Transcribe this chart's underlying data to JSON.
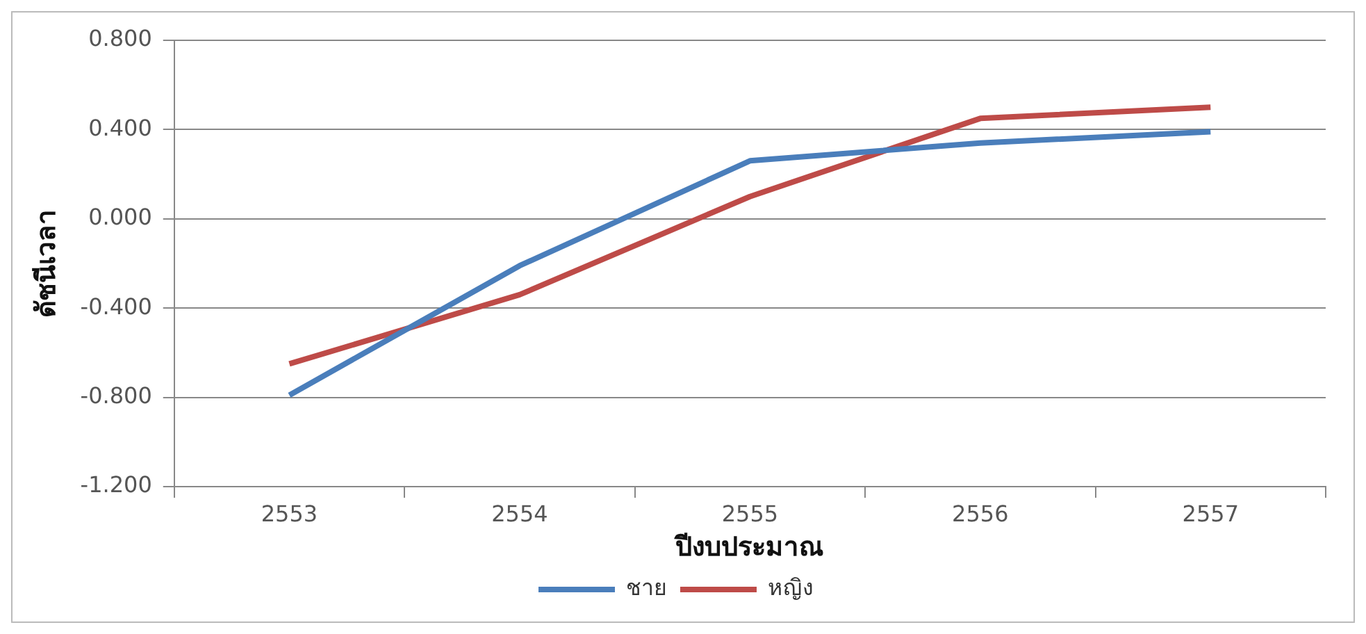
{
  "chart_data": {
    "type": "line",
    "xlabel": "ปีงบประมาณ",
    "ylabel": "ดัชนีเวลา",
    "categories": [
      "2553",
      "2554",
      "2555",
      "2556",
      "2557"
    ],
    "series": [
      {
        "name": "ชาย",
        "color": "#4a7ebb",
        "values": [
          -0.79,
          -0.21,
          0.26,
          0.34,
          0.39
        ]
      },
      {
        "name": "หญิง",
        "color": "#be4b48",
        "values": [
          -0.65,
          -0.34,
          0.1,
          0.45,
          0.5
        ]
      }
    ],
    "ylim": [
      -1.2,
      0.8
    ],
    "yticks": [
      {
        "value": -1.2,
        "label": "-1.200"
      },
      {
        "value": -0.8,
        "label": "-0.800"
      },
      {
        "value": -0.4,
        "label": "-0.400"
      },
      {
        "value": 0,
        "label": "0.000"
      },
      {
        "value": 0.4,
        "label": "0.400"
      },
      {
        "value": 0.8,
        "label": "0.800"
      }
    ],
    "grid": "y",
    "legend": "bottom",
    "marker": "none",
    "line_style": "solid"
  }
}
